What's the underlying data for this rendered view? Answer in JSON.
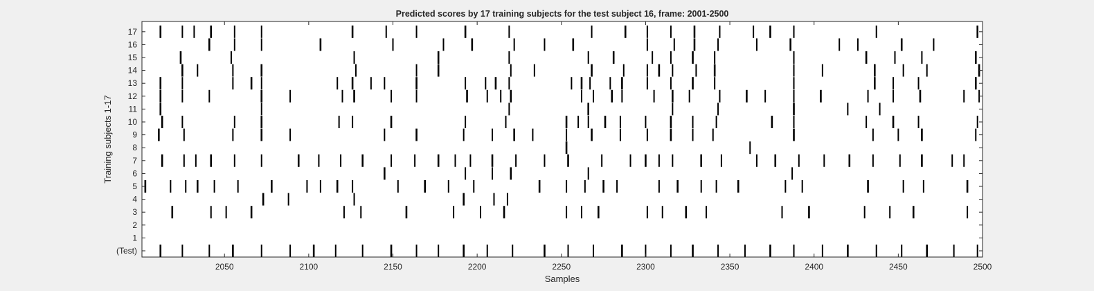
{
  "chart_data": {
    "type": "raster",
    "title": "Predicted scores by 17 training subjects for the test subject 16, frame: 2001-2500",
    "xlabel": "Samples",
    "ylabel": "Training subjects 1-17",
    "xlim": [
      2001,
      2500
    ],
    "x_ticks": [
      2050,
      2100,
      2150,
      2200,
      2250,
      2300,
      2350,
      2400,
      2450,
      2500
    ],
    "y_tick_labels": [
      "(Test)",
      "1",
      "2",
      "3",
      "4",
      "5",
      "6",
      "7",
      "8",
      "9",
      "10",
      "11",
      "12",
      "13",
      "14",
      "15",
      "16",
      "17"
    ],
    "grid": false,
    "rows": [
      {
        "label": "(Test)",
        "samples": [
          2012,
          2025,
          2041,
          2055,
          2072,
          2089,
          2103,
          2116,
          2132,
          2149,
          2164,
          2177,
          2192,
          2206,
          2221,
          2240,
          2254,
          2269,
          2286,
          2300,
          2315,
          2328,
          2343,
          2359,
          2374,
          2388,
          2405,
          2420,
          2437,
          2452,
          2467,
          2483,
          2497
        ]
      },
      {
        "label": "1",
        "samples": []
      },
      {
        "label": "2",
        "samples": []
      },
      {
        "label": "3",
        "samples": [
          2019,
          2042,
          2051,
          2066,
          2121,
          2131,
          2158,
          2186,
          2202,
          2216,
          2253,
          2262,
          2272,
          2301,
          2310,
          2324,
          2336,
          2381,
          2397,
          2430,
          2445,
          2459,
          2491
        ]
      },
      {
        "label": "4",
        "samples": [
          2073,
          2088,
          2127,
          2192,
          2210,
          2218
        ]
      },
      {
        "label": "5",
        "samples": [
          2003,
          2018,
          2027,
          2034,
          2044,
          2058,
          2078,
          2099,
          2107,
          2117,
          2126,
          2153,
          2169,
          2183,
          2198,
          2237,
          2253,
          2264,
          2275,
          2283,
          2308,
          2319,
          2333,
          2342,
          2355,
          2383,
          2393,
          2432,
          2453,
          2465,
          2491
        ]
      },
      {
        "label": "6",
        "samples": [
          2145,
          2193,
          2209,
          2220,
          2266,
          2387
        ]
      },
      {
        "label": "7",
        "samples": [
          2013,
          2026,
          2033,
          2042,
          2056,
          2072,
          2094,
          2106,
          2119,
          2132,
          2149,
          2163,
          2177,
          2187,
          2196,
          2209,
          2223,
          2240,
          2254,
          2274,
          2291,
          2300,
          2308,
          2316,
          2333,
          2345,
          2366,
          2377,
          2391,
          2406,
          2421,
          2435,
          2451,
          2464,
          2482,
          2489
        ]
      },
      {
        "label": "8",
        "samples": [
          2253,
          2362
        ]
      },
      {
        "label": "9",
        "samples": [
          2011,
          2026,
          2055,
          2072,
          2089,
          2145,
          2164,
          2192,
          2209,
          2222,
          2233,
          2253,
          2268,
          2285,
          2301,
          2315,
          2328,
          2340,
          2388,
          2435,
          2450,
          2464,
          2496
        ]
      },
      {
        "label": "10",
        "samples": [
          2013,
          2025,
          2056,
          2072,
          2118,
          2126,
          2149,
          2193,
          2217,
          2253,
          2260,
          2266,
          2276,
          2285,
          2300,
          2315,
          2328,
          2342,
          2375,
          2388,
          2431,
          2447,
          2462,
          2497
        ]
      },
      {
        "label": "11",
        "samples": [
          2012,
          2072,
          2219,
          2266,
          2316,
          2343,
          2388,
          2420,
          2439
        ]
      },
      {
        "label": "12",
        "samples": [
          2012,
          2025,
          2041,
          2072,
          2089,
          2120,
          2127,
          2149,
          2164,
          2194,
          2206,
          2214,
          2220,
          2262,
          2269,
          2280,
          2286,
          2305,
          2316,
          2326,
          2344,
          2360,
          2371,
          2388,
          2404,
          2432,
          2447,
          2463,
          2489,
          2498
        ]
      },
      {
        "label": "13",
        "samples": [
          2012,
          2025,
          2055,
          2066,
          2072,
          2117,
          2126,
          2137,
          2145,
          2164,
          2193,
          2205,
          2211,
          2219,
          2256,
          2262,
          2267,
          2279,
          2286,
          2301,
          2315,
          2328,
          2341,
          2388,
          2436,
          2447,
          2462,
          2496
        ]
      },
      {
        "label": "14",
        "samples": [
          2025,
          2034,
          2055,
          2072,
          2128,
          2164,
          2177,
          2220,
          2234,
          2268,
          2287,
          2301,
          2308,
          2316,
          2330,
          2341,
          2388,
          2405,
          2436,
          2453,
          2467,
          2498
        ]
      },
      {
        "label": "15",
        "samples": [
          2024,
          2054,
          2127,
          2177,
          2219,
          2266,
          2281,
          2304,
          2315,
          2328,
          2341,
          2388,
          2431,
          2448,
          2464,
          2496
        ]
      },
      {
        "label": "16",
        "samples": [
          2041,
          2056,
          2072,
          2107,
          2150,
          2180,
          2197,
          2222,
          2240,
          2257,
          2301,
          2317,
          2329,
          2343,
          2366,
          2386,
          2415,
          2426,
          2452,
          2471
        ]
      },
      {
        "label": "17",
        "samples": [
          2012,
          2025,
          2032,
          2042,
          2056,
          2072,
          2126,
          2146,
          2164,
          2193,
          2219,
          2268,
          2288,
          2301,
          2315,
          2329,
          2344,
          2364,
          2374,
          2388,
          2437,
          2497
        ]
      }
    ]
  }
}
